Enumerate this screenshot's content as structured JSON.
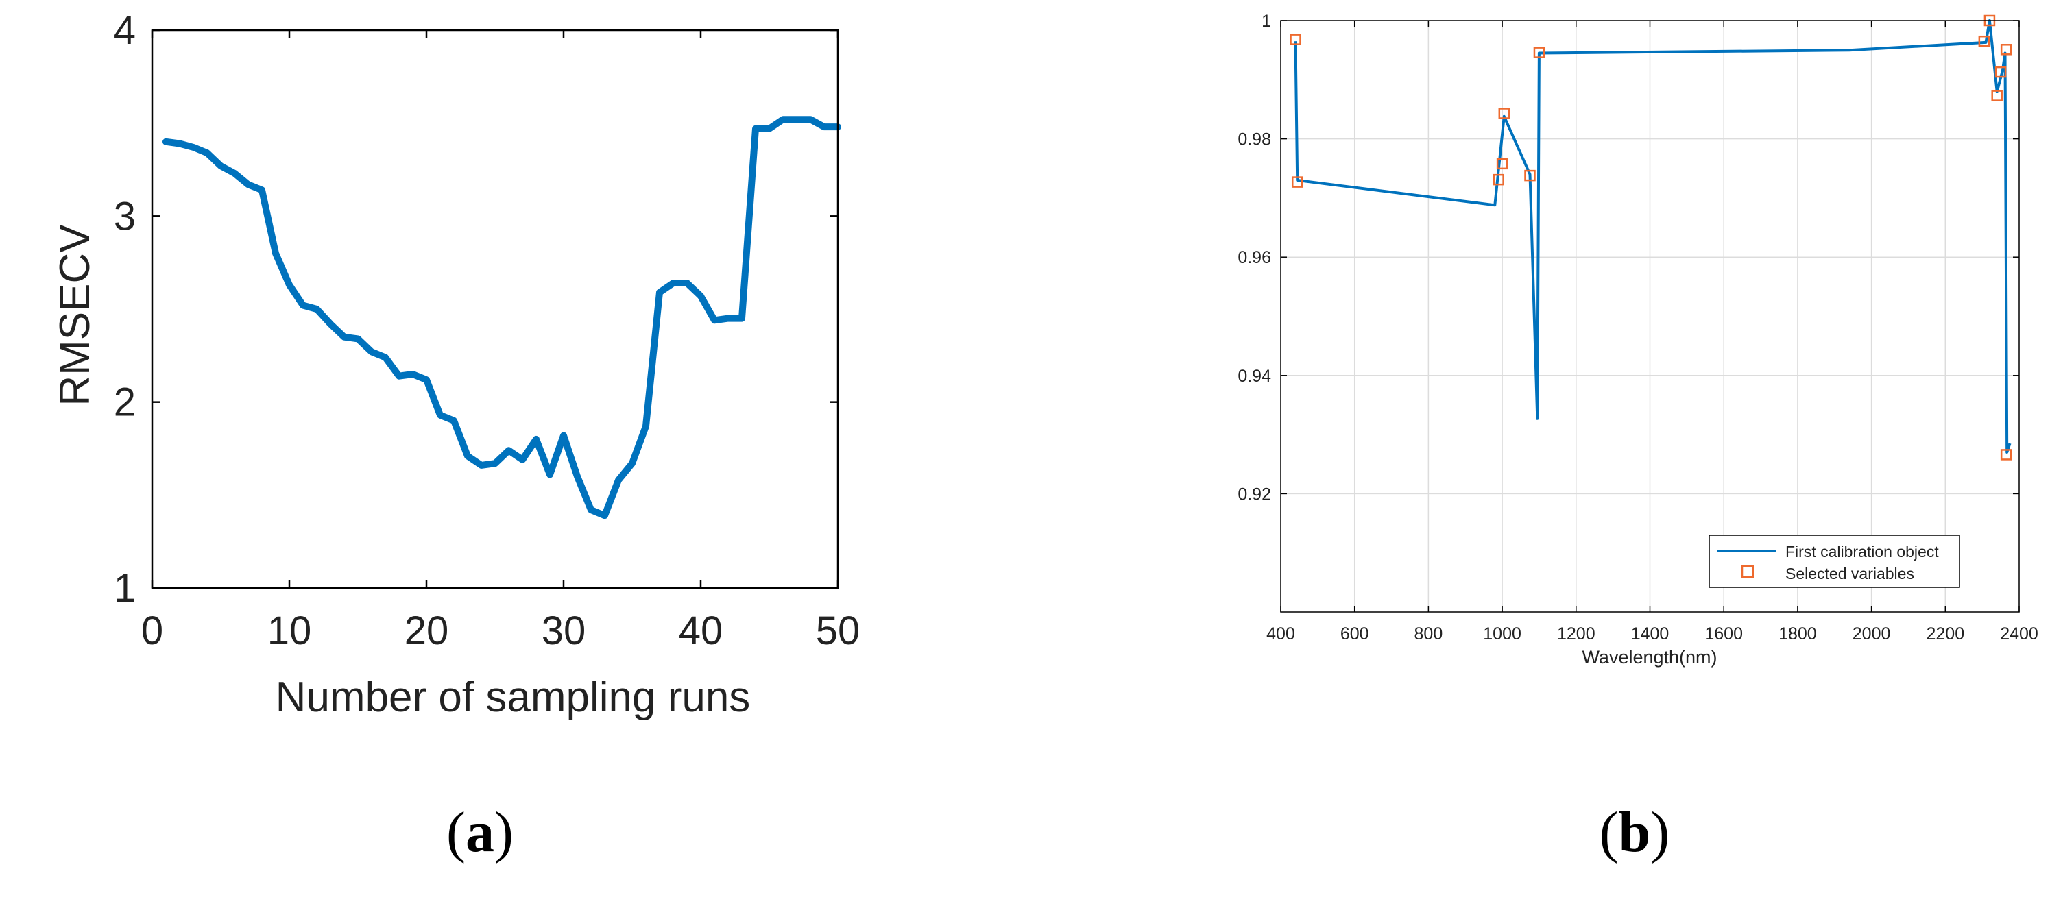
{
  "panels": [
    {
      "label": "(a)",
      "label_bold": "a"
    },
    {
      "label": "(b)",
      "label_bold": "b"
    }
  ],
  "colors": {
    "line": "#0072BD",
    "marker": "#EE6A2E",
    "grid": "#dcdcdc",
    "axis": "#000000"
  },
  "chart_data": [
    {
      "type": "line",
      "title": "",
      "xlabel": "Number of sampling runs",
      "ylabel": "RMSECV",
      "xlim": [
        0,
        50
      ],
      "ylim": [
        1,
        4
      ],
      "xticks": [
        0,
        10,
        20,
        30,
        40,
        50
      ],
      "yticks": [
        1,
        2,
        3,
        4
      ],
      "grid": false,
      "series": [
        {
          "x": [
            1,
            2,
            3,
            4,
            5,
            6,
            7,
            8,
            9,
            10,
            11,
            12,
            13,
            14,
            15,
            16,
            17,
            18,
            19,
            20,
            21,
            22,
            23,
            24,
            25,
            26,
            27,
            28,
            29,
            30,
            31,
            32,
            33,
            34,
            35,
            36,
            37,
            38,
            39,
            40,
            41,
            42,
            43,
            44,
            45,
            46,
            47,
            48,
            49,
            50
          ],
          "values": [
            3.4,
            3.39,
            3.37,
            3.34,
            3.27,
            3.23,
            3.17,
            3.14,
            2.8,
            2.63,
            2.52,
            2.5,
            2.42,
            2.35,
            2.34,
            2.27,
            2.24,
            2.14,
            2.15,
            2.12,
            1.93,
            1.9,
            1.71,
            1.66,
            1.67,
            1.74,
            1.69,
            1.8,
            1.61,
            1.82,
            1.6,
            1.42,
            1.39,
            1.58,
            1.67,
            1.87,
            2.59,
            2.64,
            2.64,
            2.57,
            2.44,
            2.45,
            2.45,
            3.47,
            3.47,
            3.52,
            3.52,
            3.52,
            3.48,
            3.48
          ]
        }
      ]
    },
    {
      "type": "line",
      "title": "",
      "xlabel": "Wavelength(nm)",
      "ylabel": "",
      "xlim": [
        400,
        2400
      ],
      "ylim": [
        0.9,
        1.0
      ],
      "xticks": [
        400,
        600,
        800,
        1000,
        1200,
        1400,
        1600,
        1800,
        2000,
        2200,
        2400
      ],
      "yticks": [
        0.92,
        0.94,
        0.96,
        0.98,
        1
      ],
      "ytick_labels": [
        "0.92",
        "0.94",
        "0.96",
        "0.98",
        "1"
      ],
      "grid": true,
      "legend_position": "bottom-right",
      "series": [
        {
          "name": "First calibration object",
          "x": [
            440,
            445,
            980,
            1005,
            1075,
            1095,
            1100,
            1940,
            2310,
            2320,
            2340,
            2355,
            2362,
            2367,
            2375
          ],
          "values": [
            0.9965,
            0.973,
            0.9688,
            0.9838,
            0.974,
            0.9327,
            0.9945,
            0.995,
            0.9963,
            1.0,
            0.988,
            0.9915,
            0.9945,
            0.927,
            0.9285
          ]
        },
        {
          "name": "Selected variables",
          "x": [
            440,
            445,
            990,
            1000,
            1005,
            1075,
            1100,
            2305,
            2320,
            2340,
            2350,
            2365,
            2365
          ],
          "values": [
            0.9968,
            0.9727,
            0.9731,
            0.9758,
            0.9843,
            0.9738,
            0.9946,
            0.9965,
            1.0,
            0.9873,
            0.9913,
            0.9951,
            0.9266
          ]
        }
      ]
    }
  ]
}
